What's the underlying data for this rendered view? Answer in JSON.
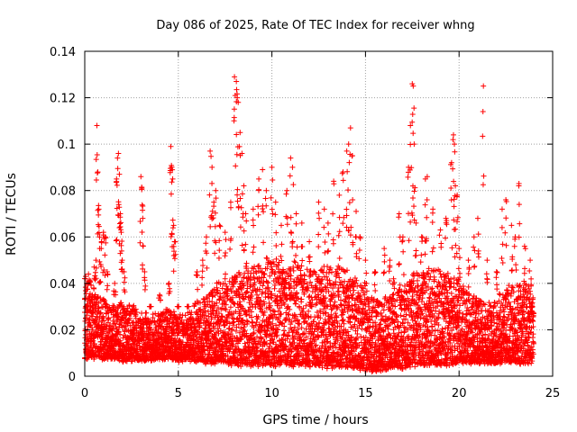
{
  "chart_data": {
    "type": "scatter",
    "title": "Day 086 of 2025, Rate Of TEC Index for receiver whng",
    "xlabel": "GPS time / hours",
    "ylabel": "ROTI / TECUs",
    "xlim": [
      0,
      25
    ],
    "ylim": [
      0,
      0.14
    ],
    "xticks": [
      0,
      5,
      10,
      15,
      20,
      25
    ],
    "xtick_labels": [
      "0",
      "5",
      "10",
      "15",
      "20",
      "25"
    ],
    "yticks": [
      0,
      0.02,
      0.04,
      0.06,
      0.08,
      0.1,
      0.12,
      0.14
    ],
    "ytick_labels": [
      "0",
      "0.02",
      "0.04",
      "0.06",
      "0.08",
      "0.1",
      "0.12",
      "0.14"
    ],
    "grid": true,
    "marker": "+",
    "marker_color": "#ff0000",
    "series": [
      {
        "points": [
          [
            0.05,
            0.043
          ],
          [
            0.1,
            0.04
          ],
          [
            0.2,
            0.044
          ],
          [
            0.3,
            0.041
          ],
          [
            0.4,
            0.035
          ],
          [
            0.5,
            0.047
          ],
          [
            0.6,
            0.05
          ],
          [
            0.65,
            0.108
          ],
          [
            0.7,
            0.088
          ],
          [
            0.75,
            0.072
          ],
          [
            0.8,
            0.055
          ],
          [
            0.9,
            0.058
          ],
          [
            1.0,
            0.062
          ],
          [
            1.1,
            0.06
          ],
          [
            1.2,
            0.045
          ],
          [
            1.6,
            0.04
          ],
          [
            1.7,
            0.085
          ],
          [
            1.75,
            0.094
          ],
          [
            1.8,
            0.096
          ],
          [
            1.85,
            0.087
          ],
          [
            1.9,
            0.07
          ],
          [
            1.95,
            0.062
          ],
          [
            2.0,
            0.05
          ],
          [
            2.1,
            0.045
          ],
          [
            2.6,
            0.028
          ],
          [
            3.0,
            0.086
          ],
          [
            3.05,
            0.081
          ],
          [
            3.1,
            0.068
          ],
          [
            3.2,
            0.045
          ],
          [
            3.5,
            0.03
          ],
          [
            4.0,
            0.035
          ],
          [
            4.5,
            0.04
          ],
          [
            4.6,
            0.099
          ],
          [
            4.65,
            0.09
          ],
          [
            4.7,
            0.085
          ],
          [
            4.75,
            0.065
          ],
          [
            4.8,
            0.058
          ],
          [
            5.0,
            0.03
          ],
          [
            5.5,
            0.03
          ],
          [
            6.0,
            0.045
          ],
          [
            6.3,
            0.05
          ],
          [
            6.5,
            0.06
          ],
          [
            6.7,
            0.097
          ],
          [
            6.8,
            0.09
          ],
          [
            6.9,
            0.075
          ],
          [
            7.0,
            0.08
          ],
          [
            7.2,
            0.065
          ],
          [
            7.5,
            0.062
          ],
          [
            7.8,
            0.075
          ],
          [
            8.0,
            0.129
          ],
          [
            8.1,
            0.127
          ],
          [
            8.15,
            0.12
          ],
          [
            8.2,
            0.118
          ],
          [
            8.3,
            0.105
          ],
          [
            8.4,
            0.096
          ],
          [
            8.5,
            0.082
          ],
          [
            8.6,
            0.07
          ],
          [
            9.0,
            0.072
          ],
          [
            9.3,
            0.085
          ],
          [
            9.5,
            0.089
          ],
          [
            9.7,
            0.08
          ],
          [
            10.0,
            0.09
          ],
          [
            10.2,
            0.075
          ],
          [
            10.5,
            0.065
          ],
          [
            10.8,
            0.08
          ],
          [
            11.0,
            0.094
          ],
          [
            11.1,
            0.09
          ],
          [
            11.3,
            0.07
          ],
          [
            11.6,
            0.066
          ],
          [
            12.0,
            0.058
          ],
          [
            12.5,
            0.075
          ],
          [
            12.8,
            0.072
          ],
          [
            13.0,
            0.066
          ],
          [
            13.3,
            0.084
          ],
          [
            13.6,
            0.078
          ],
          [
            13.8,
            0.088
          ],
          [
            14.0,
            0.097
          ],
          [
            14.1,
            0.1
          ],
          [
            14.2,
            0.107
          ],
          [
            14.3,
            0.095
          ],
          [
            14.5,
            0.071
          ],
          [
            14.7,
            0.06
          ],
          [
            15.0,
            0.05
          ],
          [
            15.5,
            0.045
          ],
          [
            16.0,
            0.055
          ],
          [
            16.3,
            0.05
          ],
          [
            16.5,
            0.042
          ],
          [
            16.8,
            0.07
          ],
          [
            17.0,
            0.06
          ],
          [
            17.3,
            0.09
          ],
          [
            17.4,
            0.108
          ],
          [
            17.5,
            0.126
          ],
          [
            17.55,
            0.125
          ],
          [
            17.6,
            0.1
          ],
          [
            17.7,
            0.066
          ],
          [
            18.0,
            0.06
          ],
          [
            18.2,
            0.085
          ],
          [
            18.3,
            0.086
          ],
          [
            18.6,
            0.072
          ],
          [
            19.0,
            0.063
          ],
          [
            19.3,
            0.068
          ],
          [
            19.6,
            0.092
          ],
          [
            19.7,
            0.104
          ],
          [
            19.75,
            0.1
          ],
          [
            19.8,
            0.082
          ],
          [
            19.9,
            0.078
          ],
          [
            20.0,
            0.055
          ],
          [
            20.5,
            0.05
          ],
          [
            20.8,
            0.06
          ],
          [
            21.0,
            0.068
          ],
          [
            21.3,
            0.125
          ],
          [
            21.5,
            0.05
          ],
          [
            22.0,
            0.045
          ],
          [
            22.3,
            0.072
          ],
          [
            22.5,
            0.076
          ],
          [
            22.8,
            0.065
          ],
          [
            23.0,
            0.06
          ],
          [
            23.2,
            0.083
          ],
          [
            23.5,
            0.056
          ],
          [
            23.8,
            0.05
          ]
        ],
        "band": [
          [
            0.0,
            0.008,
            0.034
          ],
          [
            0.5,
            0.008,
            0.036
          ],
          [
            1.0,
            0.008,
            0.033
          ],
          [
            1.5,
            0.008,
            0.03
          ],
          [
            2.0,
            0.007,
            0.032
          ],
          [
            2.5,
            0.007,
            0.03
          ],
          [
            3.0,
            0.007,
            0.028
          ],
          [
            3.5,
            0.007,
            0.026
          ],
          [
            4.0,
            0.008,
            0.028
          ],
          [
            4.5,
            0.008,
            0.03
          ],
          [
            5.0,
            0.007,
            0.026
          ],
          [
            5.5,
            0.007,
            0.028
          ],
          [
            6.0,
            0.007,
            0.032
          ],
          [
            6.5,
            0.006,
            0.035
          ],
          [
            7.0,
            0.006,
            0.04
          ],
          [
            7.5,
            0.006,
            0.042
          ],
          [
            8.0,
            0.005,
            0.044
          ],
          [
            8.5,
            0.005,
            0.046
          ],
          [
            9.0,
            0.005,
            0.048
          ],
          [
            9.5,
            0.005,
            0.05
          ],
          [
            10.0,
            0.005,
            0.05
          ],
          [
            10.5,
            0.005,
            0.05
          ],
          [
            11.0,
            0.005,
            0.05
          ],
          [
            11.5,
            0.005,
            0.048
          ],
          [
            12.0,
            0.005,
            0.046
          ],
          [
            12.5,
            0.005,
            0.046
          ],
          [
            13.0,
            0.004,
            0.048
          ],
          [
            13.5,
            0.004,
            0.048
          ],
          [
            14.0,
            0.004,
            0.046
          ],
          [
            14.5,
            0.004,
            0.042
          ],
          [
            15.0,
            0.003,
            0.038
          ],
          [
            15.5,
            0.002,
            0.034
          ],
          [
            16.0,
            0.003,
            0.034
          ],
          [
            16.5,
            0.004,
            0.036
          ],
          [
            17.0,
            0.004,
            0.04
          ],
          [
            17.5,
            0.005,
            0.044
          ],
          [
            18.0,
            0.005,
            0.046
          ],
          [
            18.5,
            0.005,
            0.046
          ],
          [
            19.0,
            0.005,
            0.046
          ],
          [
            19.5,
            0.005,
            0.046
          ],
          [
            20.0,
            0.006,
            0.042
          ],
          [
            20.5,
            0.006,
            0.036
          ],
          [
            21.0,
            0.006,
            0.034
          ],
          [
            21.5,
            0.006,
            0.03
          ],
          [
            22.0,
            0.006,
            0.034
          ],
          [
            22.5,
            0.006,
            0.038
          ],
          [
            23.0,
            0.006,
            0.04
          ],
          [
            23.5,
            0.006,
            0.04
          ],
          [
            24.0,
            0.006,
            0.036
          ]
        ]
      }
    ]
  }
}
